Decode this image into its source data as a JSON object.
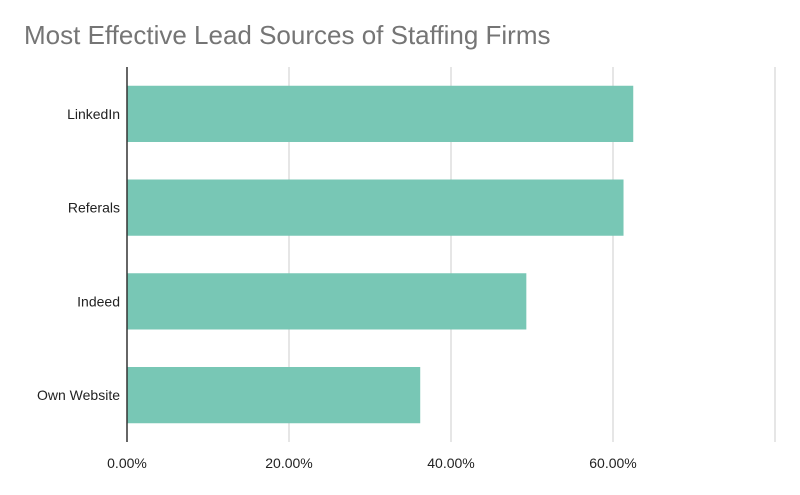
{
  "chart_data": {
    "type": "bar",
    "orientation": "horizontal",
    "title": "Most Effective Lead Sources of Staffing Firms",
    "categories": [
      "LinkedIn",
      "Referals",
      "Indeed",
      "Own Website"
    ],
    "values": [
      62.5,
      61.3,
      49.3,
      36.2
    ],
    "xlim": [
      0,
      80
    ],
    "x_ticks": [
      0,
      20,
      40,
      60
    ],
    "x_tick_labels": [
      "0.00%",
      "20.00%",
      "40.00%",
      "60.00%"
    ],
    "xlabel": "",
    "ylabel": "",
    "grid": true,
    "legend": "none",
    "colors": {
      "bar": "#78c7b5",
      "grid": "#cccccc",
      "axis": "#333333",
      "label": "#222222",
      "title": "#757575"
    }
  }
}
